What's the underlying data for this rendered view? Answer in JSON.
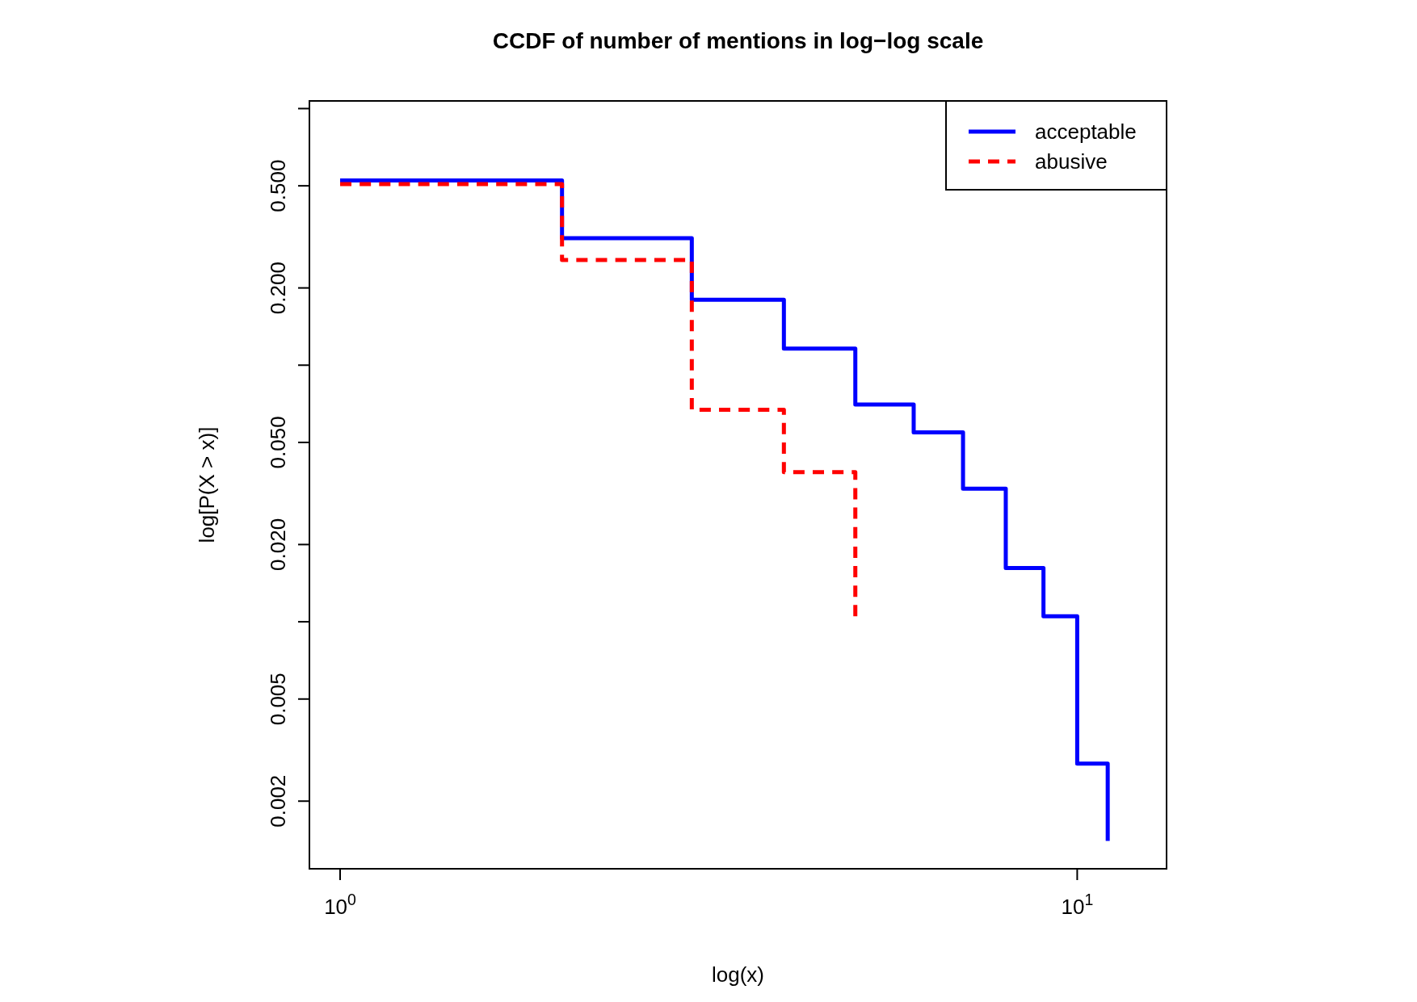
{
  "chart_data": {
    "type": "step",
    "title": "CCDF of number of mentions in log−log scale",
    "xlabel": "log(x)",
    "ylabel": "log[P(X > x)]",
    "log": "xy",
    "legend": "top right",
    "grid": false,
    "xlim": [
      0.9085,
      13.22
    ],
    "xticks": [
      {
        "value": 1,
        "label": "10$^{0}$"
      },
      {
        "value": 10,
        "label": "10$^{1}$"
      }
    ],
    "ylim": [
      0.00109,
      1.071
    ],
    "yticks": [
      {
        "value": 0.002,
        "label": "0.002"
      },
      {
        "value": 0.005,
        "label": "0.005"
      },
      {
        "value": 0.01,
        "label": null
      },
      {
        "value": 0.02,
        "label": "0.020"
      },
      {
        "value": 0.05,
        "label": "0.050"
      },
      {
        "value": 0.1,
        "label": null
      },
      {
        "value": 0.2,
        "label": "0.200"
      },
      {
        "value": 0.5,
        "label": "0.500"
      },
      {
        "value": 1,
        "label": null
      }
    ],
    "series": [
      {
        "name": "acceptable",
        "color": "#0000ff",
        "line_style": "solid",
        "x": [
          1,
          2,
          3,
          4,
          5,
          6,
          7,
          8,
          9,
          10,
          11
        ],
        "values": [
          0.525,
          0.3125,
          0.18,
          0.116,
          0.0703,
          0.0547,
          0.033,
          0.0162,
          0.0105,
          0.0028,
          0.0014
        ]
      },
      {
        "name": "abusive",
        "color": "#ff0000",
        "line_style": "dashed",
        "x": [
          1,
          2,
          3,
          4,
          5
        ],
        "values": [
          0.508,
          0.257,
          0.067,
          0.0383,
          0.0105
        ]
      }
    ]
  }
}
